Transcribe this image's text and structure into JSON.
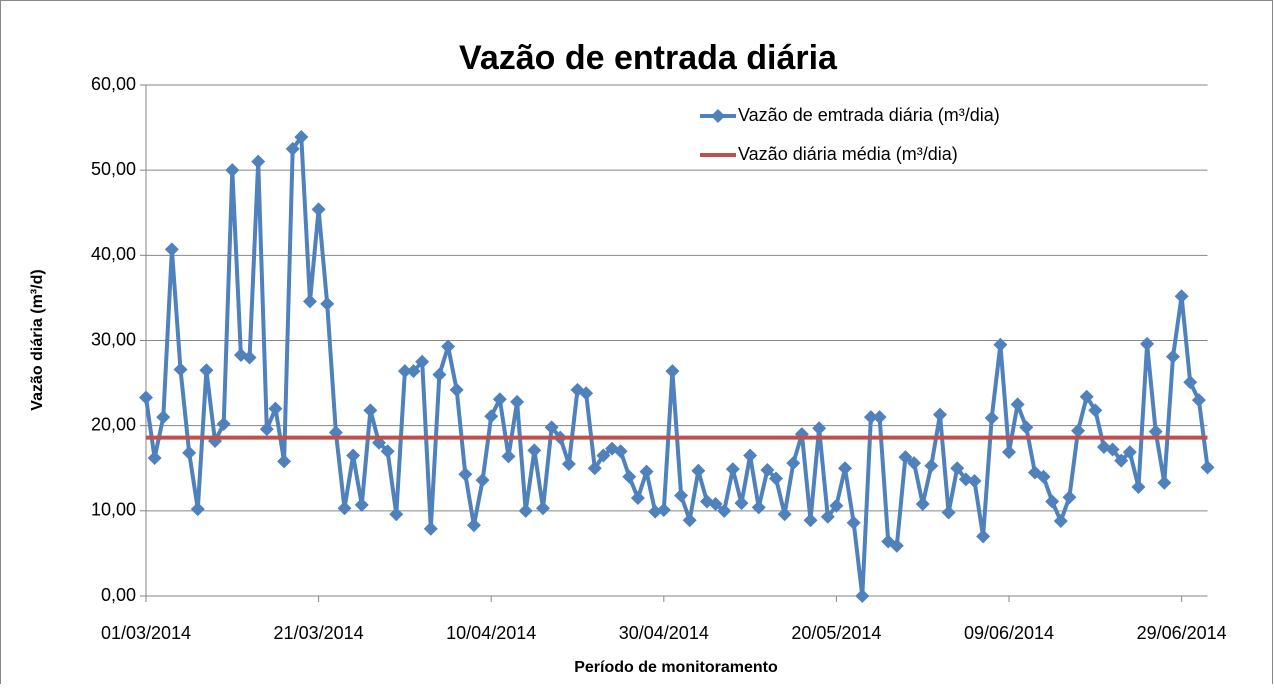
{
  "chart_data": {
    "type": "line",
    "title": "Vazão de entrada diária",
    "x_label": "Período de monitoramento",
    "y_label": "Vazão diária (m³/d)",
    "x": [
      "01/03/2014",
      "02/03/2014",
      "03/03/2014",
      "04/03/2014",
      "05/03/2014",
      "06/03/2014",
      "07/03/2014",
      "08/03/2014",
      "09/03/2014",
      "10/03/2014",
      "11/03/2014",
      "12/03/2014",
      "13/03/2014",
      "14/03/2014",
      "15/03/2014",
      "16/03/2014",
      "17/03/2014",
      "18/03/2014",
      "19/03/2014",
      "20/03/2014",
      "21/03/2014",
      "22/03/2014",
      "23/03/2014",
      "24/03/2014",
      "25/03/2014",
      "26/03/2014",
      "27/03/2014",
      "28/03/2014",
      "29/03/2014",
      "30/03/2014",
      "31/03/2014",
      "01/04/2014",
      "02/04/2014",
      "03/04/2014",
      "04/04/2014",
      "05/04/2014",
      "06/04/2014",
      "07/04/2014",
      "08/04/2014",
      "09/04/2014",
      "10/04/2014",
      "11/04/2014",
      "12/04/2014",
      "13/04/2014",
      "14/04/2014",
      "15/04/2014",
      "16/04/2014",
      "17/04/2014",
      "18/04/2014",
      "19/04/2014",
      "20/04/2014",
      "21/04/2014",
      "22/04/2014",
      "23/04/2014",
      "24/04/2014",
      "25/04/2014",
      "26/04/2014",
      "27/04/2014",
      "28/04/2014",
      "29/04/2014",
      "30/04/2014",
      "01/05/2014",
      "02/05/2014",
      "03/05/2014",
      "04/05/2014",
      "05/05/2014",
      "06/05/2014",
      "07/05/2014",
      "08/05/2014",
      "09/05/2014",
      "10/05/2014",
      "11/05/2014",
      "12/05/2014",
      "13/05/2014",
      "14/05/2014",
      "15/05/2014",
      "16/05/2014",
      "17/05/2014",
      "18/05/2014",
      "19/05/2014",
      "20/05/2014",
      "21/05/2014",
      "22/05/2014",
      "23/05/2014",
      "24/05/2014",
      "25/05/2014",
      "26/05/2014",
      "27/05/2014",
      "28/05/2014",
      "29/05/2014",
      "30/05/2014",
      "31/05/2014",
      "01/06/2014",
      "02/06/2014",
      "03/06/2014",
      "04/06/2014",
      "05/06/2014",
      "06/06/2014",
      "07/06/2014",
      "08/06/2014",
      "09/06/2014",
      "10/06/2014",
      "11/06/2014",
      "12/06/2014",
      "13/06/2014",
      "14/06/2014",
      "15/06/2014",
      "16/06/2014",
      "17/06/2014",
      "18/06/2014",
      "19/06/2014",
      "20/06/2014",
      "21/06/2014",
      "22/06/2014",
      "23/06/2014",
      "24/06/2014",
      "25/06/2014",
      "26/06/2014",
      "27/06/2014",
      "28/06/2014",
      "29/06/2014",
      "30/06/2014",
      "01/07/2014",
      "02/07/2014"
    ],
    "series": [
      {
        "name": "Vazão de emtrada diária (m³/dia)",
        "color": "#4f81bd",
        "marker": "diamond",
        "values": [
          23.3,
          16.2,
          21,
          40.7,
          26.6,
          16.8,
          10.2,
          26.5,
          18.2,
          20.2,
          50,
          28.3,
          28,
          51,
          19.6,
          22,
          15.8,
          52.5,
          53.9,
          34.6,
          45.4,
          34.3,
          19.2,
          10.3,
          16.5,
          10.7,
          21.8,
          18,
          17,
          9.6,
          26.4,
          26.4,
          27.5,
          7.9,
          26,
          29.3,
          24.2,
          14.3,
          8.3,
          13.6,
          21.1,
          23.1,
          16.4,
          22.8,
          10,
          17.1,
          10.3,
          19.8,
          18.6,
          15.5,
          24.2,
          23.8,
          15,
          16.5,
          17.3,
          17,
          14,
          11.5,
          14.6,
          9.9,
          10.1,
          26.4,
          11.8,
          8.9,
          14.7,
          11.1,
          10.8,
          10,
          14.9,
          10.9,
          16.5,
          10.4,
          14.8,
          13.8,
          9.6,
          15.6,
          19,
          8.9,
          19.7,
          9.3,
          10.6,
          15,
          8.6,
          0,
          21,
          21,
          6.4,
          5.9,
          16.3,
          15.6,
          10.8,
          15.3,
          21.3,
          9.8,
          15,
          13.7,
          13.5,
          7,
          20.9,
          29.5,
          16.9,
          22.5,
          19.8,
          14.5,
          14,
          11.1,
          8.8,
          11.6,
          19.4,
          23.4,
          21.8,
          17.5,
          17.2,
          15.9,
          16.9,
          12.8,
          29.6,
          19.3,
          13.3,
          28.1,
          35.2,
          25.1,
          23,
          15.1
        ]
      },
      {
        "name": "Vazão diária média (m³/dia)",
        "color": "#c0504d",
        "value": 18.6
      }
    ],
    "xlim": [
      "01/03/2014",
      "02/07/2014"
    ],
    "xticks": [
      "01/03/2014",
      "21/03/2014",
      "10/04/2014",
      "30/04/2014",
      "20/05/2014",
      "09/06/2014",
      "29/06/2014"
    ],
    "ylim": [
      0,
      60
    ],
    "yticks": [
      {
        "value": 0,
        "label": "0,00"
      },
      {
        "value": 10,
        "label": "10,00"
      },
      {
        "value": 20,
        "label": "20,00"
      },
      {
        "value": 30,
        "label": "30,00"
      },
      {
        "value": 40,
        "label": "40,00"
      },
      {
        "value": 50,
        "label": "50,00"
      },
      {
        "value": 60,
        "label": "60,00"
      }
    ],
    "grid": true,
    "legend": "top-right"
  }
}
